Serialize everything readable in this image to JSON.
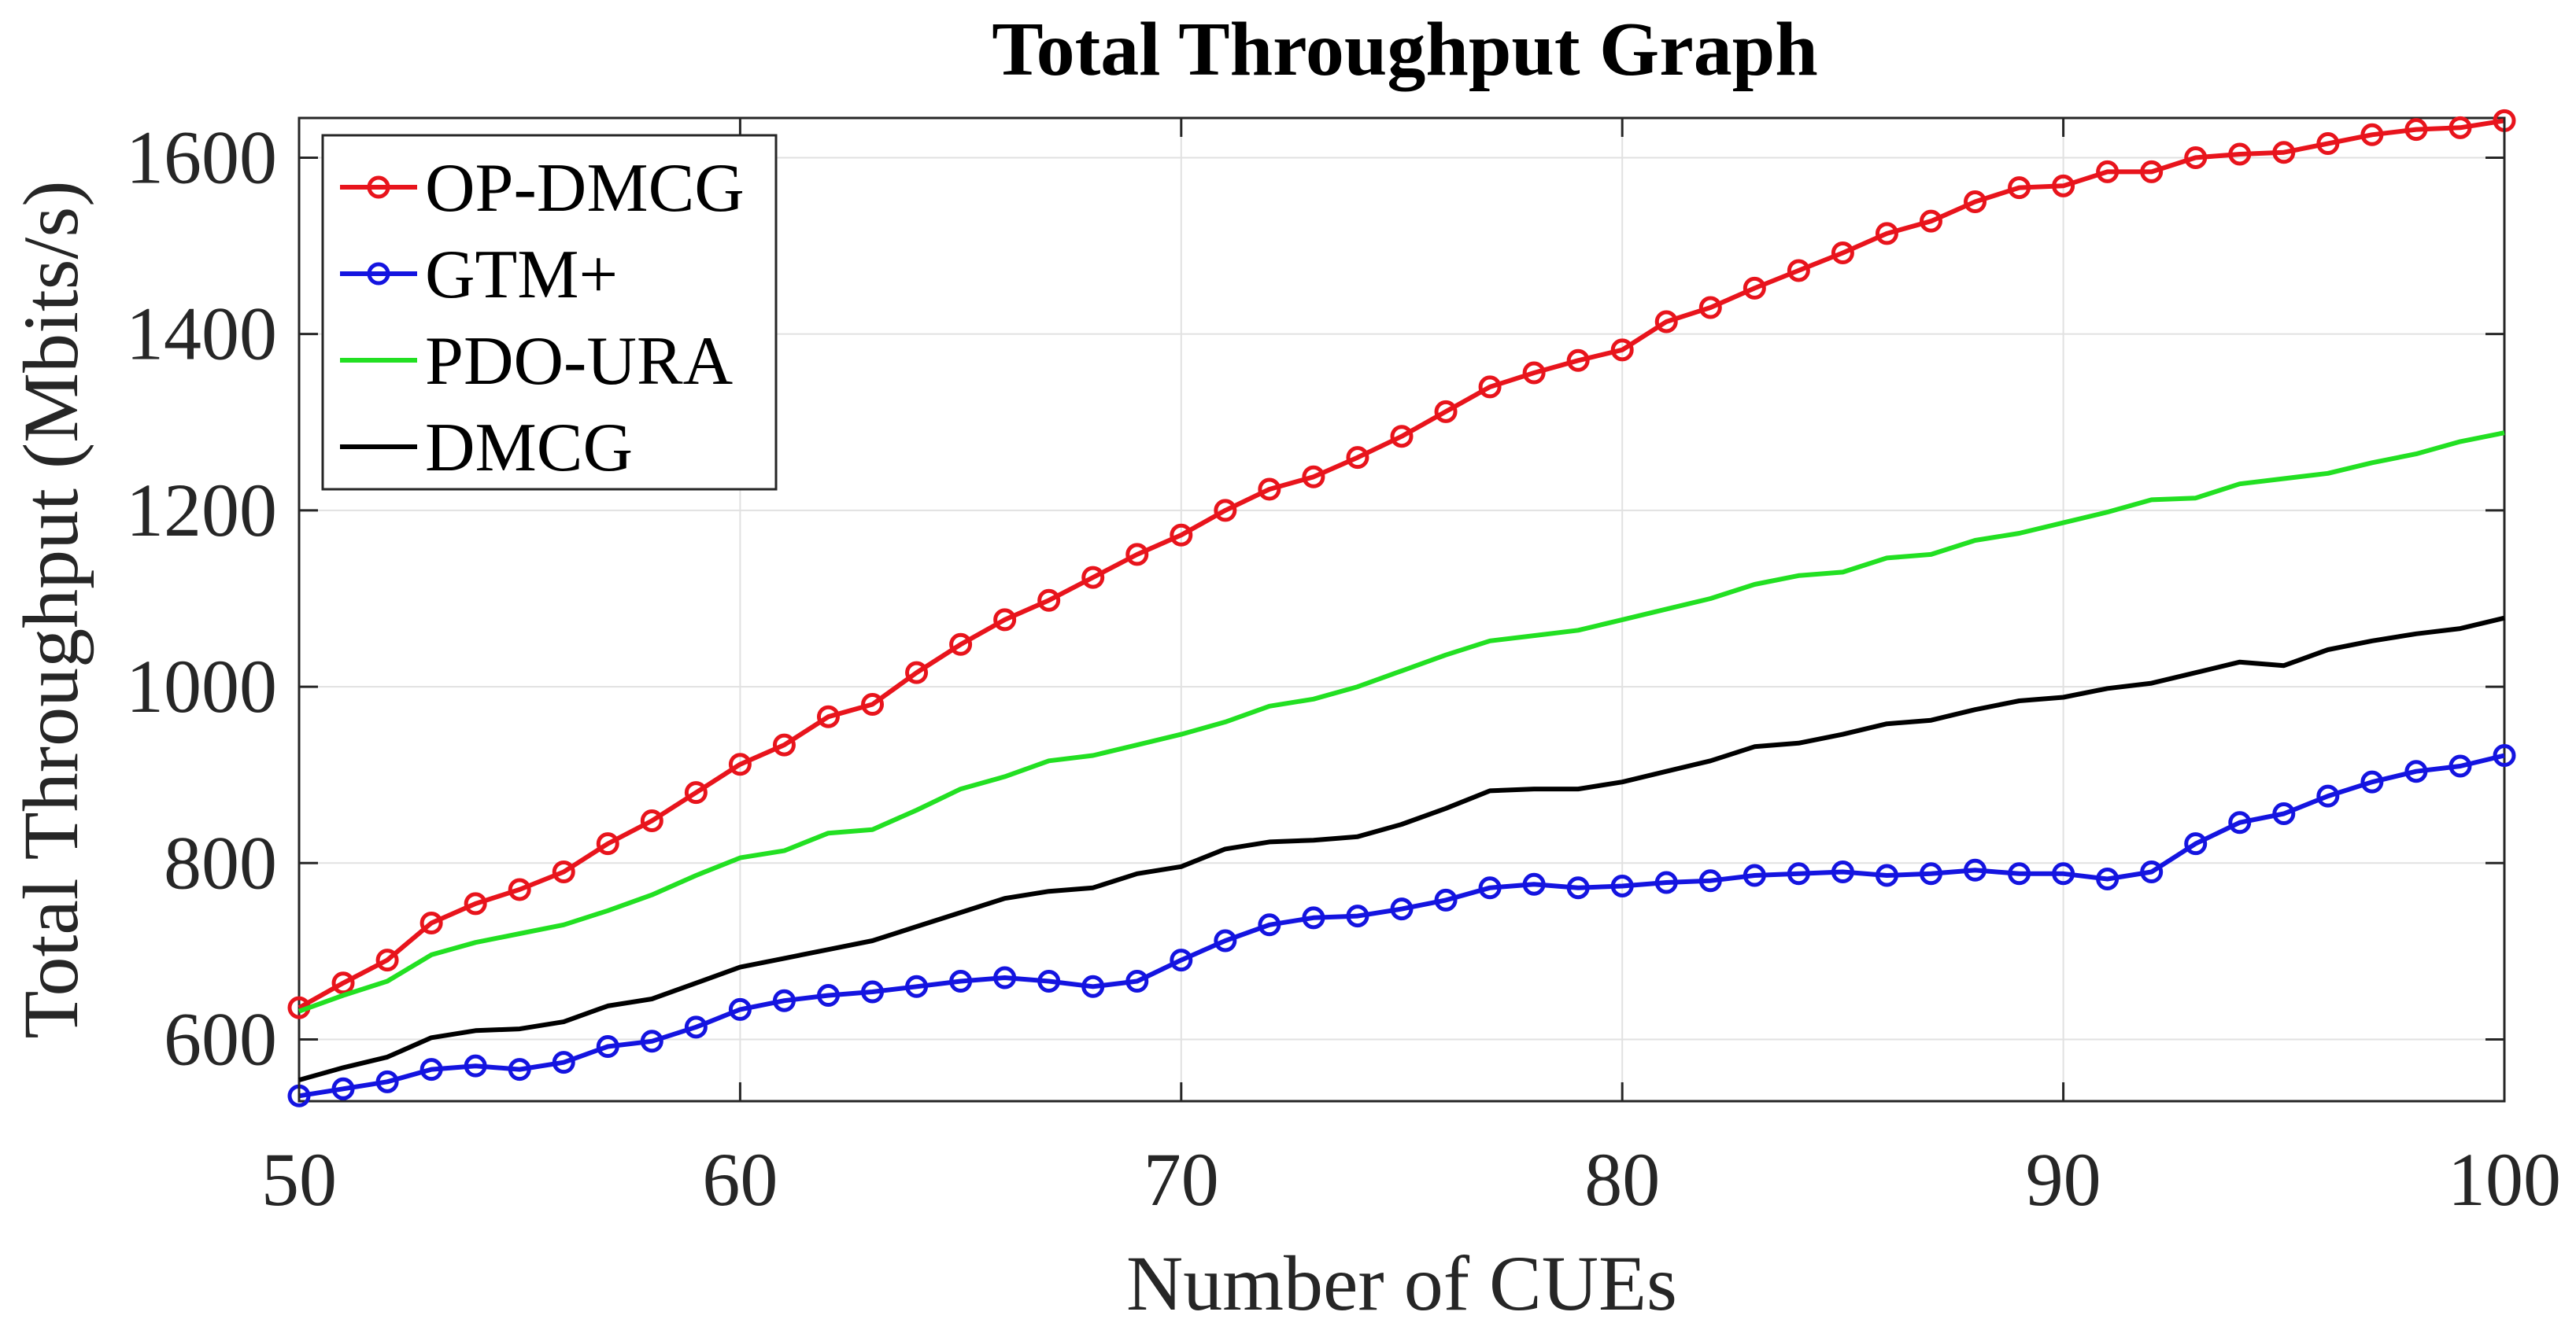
{
  "chart_data": {
    "type": "line",
    "title": "Total Throughput Graph",
    "xlabel": "Number of CUEs",
    "ylabel": "Total Throughput (Mbits/s)",
    "xlim": [
      50,
      100
    ],
    "ylim": [
      530,
      1645
    ],
    "grid": true,
    "legend_position": "top-left",
    "x_ticks": [
      50,
      60,
      70,
      80,
      90,
      100
    ],
    "y_ticks": [
      600,
      800,
      1000,
      1200,
      1400,
      1600
    ],
    "x_tick_labels": [
      "50",
      "60",
      "70",
      "80",
      "90",
      "100"
    ],
    "y_tick_labels": [
      "600",
      "800",
      "1000",
      "1200",
      "1400",
      "1600"
    ],
    "x": [
      50,
      51,
      52,
      53,
      54,
      55,
      56,
      57,
      58,
      59,
      60,
      61,
      62,
      63,
      64,
      65,
      66,
      67,
      68,
      69,
      70,
      71,
      72,
      73,
      74,
      75,
      76,
      77,
      78,
      79,
      80,
      81,
      82,
      83,
      84,
      85,
      86,
      87,
      88,
      89,
      90,
      91,
      92,
      93,
      94,
      95,
      96,
      97,
      98,
      99,
      100
    ],
    "series": [
      {
        "name": "OP-DMCG",
        "color": "#e8141c",
        "marker": "circle",
        "values": [
          636,
          664,
          690,
          732,
          754,
          770,
          790,
          822,
          848,
          880,
          912,
          934,
          966,
          980,
          1016,
          1048,
          1076,
          1098,
          1124,
          1150,
          1172,
          1200,
          1224,
          1238,
          1260,
          1284,
          1312,
          1340,
          1356,
          1370,
          1382,
          1414,
          1430,
          1452,
          1472,
          1492,
          1514,
          1528,
          1550,
          1566,
          1568,
          1584,
          1584,
          1600,
          1604,
          1606,
          1616,
          1626,
          1632,
          1634,
          1642
        ]
      },
      {
        "name": "GTM+",
        "color": "#1414e0",
        "marker": "circle",
        "values": [
          536,
          544,
          552,
          566,
          570,
          566,
          574,
          592,
          598,
          614,
          634,
          644,
          650,
          654,
          660,
          666,
          670,
          666,
          660,
          666,
          690,
          712,
          730,
          738,
          740,
          748,
          758,
          772,
          776,
          772,
          774,
          778,
          780,
          786,
          788,
          790,
          786,
          788,
          792,
          788,
          788,
          782,
          790,
          822,
          846,
          856,
          876,
          892,
          904,
          910,
          922
        ]
      },
      {
        "name": "PDO-URA",
        "color": "#22e022",
        "marker": "none",
        "values": [
          632,
          650,
          666,
          696,
          710,
          720,
          730,
          746,
          764,
          786,
          806,
          814,
          834,
          838,
          860,
          884,
          898,
          916,
          922,
          934,
          946,
          960,
          978,
          986,
          1000,
          1018,
          1036,
          1052,
          1058,
          1064,
          1076,
          1088,
          1100,
          1116,
          1126,
          1130,
          1146,
          1150,
          1166,
          1174,
          1186,
          1198,
          1212,
          1214,
          1230,
          1236,
          1242,
          1254,
          1264,
          1278,
          1288
        ]
      },
      {
        "name": "DMCG",
        "color": "#000000",
        "marker": "none",
        "values": [
          554,
          568,
          580,
          602,
          610,
          612,
          620,
          638,
          646,
          664,
          682,
          692,
          702,
          712,
          728,
          744,
          760,
          768,
          772,
          788,
          796,
          816,
          824,
          826,
          830,
          844,
          862,
          882,
          884,
          884,
          892,
          904,
          916,
          932,
          936,
          946,
          958,
          962,
          974,
          984,
          988,
          998,
          1004,
          1016,
          1028,
          1024,
          1042,
          1052,
          1060,
          1066,
          1078
        ]
      }
    ]
  }
}
